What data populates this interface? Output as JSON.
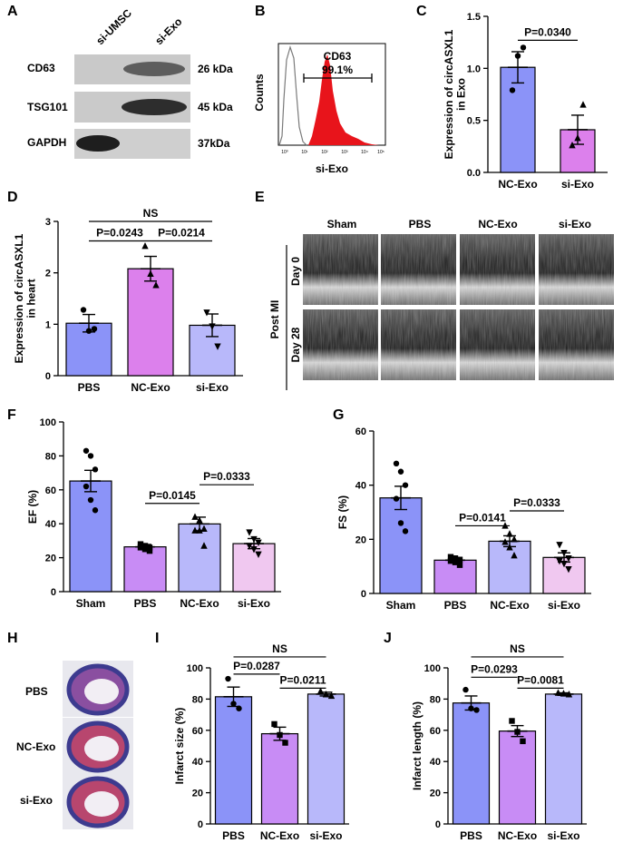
{
  "panels": {
    "A": "A",
    "B": "B",
    "C": "C",
    "D": "D",
    "E": "E",
    "F": "F",
    "G": "G",
    "H": "H",
    "I": "I",
    "J": "J"
  },
  "western_blot": {
    "lanes": [
      "si-UMSC",
      "si-Exo"
    ],
    "rows": [
      {
        "protein": "CD63",
        "size": "26 kDa"
      },
      {
        "protein": "TSG101",
        "size": "45 kDa"
      },
      {
        "protein": "GAPDH",
        "size": "37kDa"
      }
    ]
  },
  "flow_cytometry": {
    "ylabel": "Counts",
    "xlabel": "si-Exo",
    "marker": "CD63",
    "percent": "99.1%",
    "xtick_labels": [
      "10⁰",
      "10¹",
      "10²",
      "10³",
      "10⁴",
      "10⁵"
    ],
    "colors": {
      "fill": "#e8141b",
      "control": "#7a7a7a"
    }
  },
  "echo": {
    "groups": [
      "Sham",
      "PBS",
      "NC-Exo",
      "si-Exo"
    ],
    "times": [
      "Day 0",
      "Day 28"
    ],
    "side_label": "Post MI"
  },
  "histology": {
    "rows": [
      "PBS",
      "NC-Exo",
      "si-Exo"
    ]
  },
  "colors": {
    "blue": "#8b93f8",
    "violet": "#c88cf5",
    "magenta": "#dc80ec",
    "lavender": "#b8b8fa",
    "pink": "#f0c8f0"
  },
  "chart_data": [
    {
      "id": "C",
      "type": "bar",
      "title": "",
      "ylabel": "Expression of circASXL1 in Exo",
      "xlabel": "",
      "categories": [
        "NC-Exo",
        "si-Exo"
      ],
      "values": [
        1.01,
        0.41
      ],
      "errors": [
        0.15,
        0.14
      ],
      "points": [
        [
          0.79,
          1.12,
          1.2
        ],
        [
          0.26,
          0.33,
          0.65
        ]
      ],
      "markers": [
        "circle",
        "triangle"
      ],
      "ylim": [
        0,
        1.5
      ],
      "yticks": [
        0.0,
        0.5,
        1.0,
        1.5
      ],
      "ytick_labels": [
        "0.0",
        "0.5",
        "1.0",
        "1.5"
      ],
      "brackets": [
        {
          "from": 0,
          "to": 1,
          "label": "P=0.0340",
          "level": 1.27
        }
      ]
    },
    {
      "id": "D",
      "type": "bar",
      "title": "",
      "ylabel": "Expression of circASXL1 in heart",
      "xlabel": "",
      "categories": [
        "PBS",
        "NC-Exo",
        "si-Exo"
      ],
      "values": [
        1.02,
        2.08,
        0.98
      ],
      "errors": [
        0.17,
        0.24,
        0.22
      ],
      "points": [
        [
          1.28,
          0.87,
          0.91
        ],
        [
          2.52,
          1.98,
          1.76
        ],
        [
          1.23,
          0.96,
          0.57
        ]
      ],
      "markers": [
        "circle",
        "triangle",
        "invtriangle"
      ],
      "ylim": [
        0,
        3
      ],
      "yticks": [
        0,
        1,
        2,
        3
      ],
      "ytick_labels": [
        "0",
        "1",
        "2",
        "3"
      ],
      "brackets": [
        {
          "from": 0,
          "to": 1,
          "label": "P=0.0243",
          "level": 2.62
        },
        {
          "from": 1,
          "to": 2,
          "label": "P=0.0214",
          "level": 2.62
        },
        {
          "from": 0,
          "to": 2,
          "label": "NS",
          "level": 3.0
        }
      ]
    },
    {
      "id": "F",
      "type": "bar",
      "title": "",
      "ylabel": "EF (%)",
      "xlabel": "",
      "categories": [
        "Sham",
        "PBS",
        "NC-Exo",
        "si-Exo"
      ],
      "values": [
        65.2,
        26.4,
        39.9,
        28.3
      ],
      "errors": [
        6.3,
        1.4,
        4.0,
        3.0
      ],
      "points": [
        [
          83,
          80,
          72,
          62,
          54,
          48
        ],
        [
          28,
          27,
          26,
          26,
          25,
          24
        ],
        [
          44,
          42,
          37,
          36,
          36,
          27
        ],
        [
          35,
          31,
          29,
          27,
          25,
          22
        ]
      ],
      "markers": [
        "circle",
        "square",
        "triangle",
        "invtriangle"
      ],
      "ylim": [
        0,
        100
      ],
      "yticks": [
        0,
        20,
        40,
        60,
        80,
        100
      ],
      "ytick_labels": [
        "0",
        "20",
        "40",
        "60",
        "80",
        "100"
      ],
      "brackets": [
        {
          "from": 1,
          "to": 2,
          "label": "P=0.0145",
          "level": 52
        },
        {
          "from": 2,
          "to": 3,
          "label": "P=0.0333",
          "level": 63
        }
      ]
    },
    {
      "id": "G",
      "type": "bar",
      "title": "",
      "ylabel": "FS (%)",
      "xlabel": "",
      "categories": [
        "Sham",
        "PBS",
        "NC-Exo",
        "si-Exo"
      ],
      "values": [
        35.3,
        12.3,
        19.3,
        13.3
      ],
      "errors": [
        4.3,
        0.8,
        2.0,
        1.7
      ],
      "points": [
        [
          48,
          45,
          40,
          35,
          26,
          23
        ],
        [
          13.5,
          13,
          12.5,
          12,
          11.5,
          10.5
        ],
        [
          25,
          22,
          20,
          19,
          17,
          14
        ],
        [
          18,
          15,
          13,
          12,
          11,
          9
        ]
      ],
      "markers": [
        "circle",
        "square",
        "triangle",
        "invtriangle"
      ],
      "ylim": [
        0,
        60
      ],
      "yticks": [
        0,
        20,
        40,
        60
      ],
      "ytick_labels": [
        "0",
        "20",
        "40",
        "60"
      ],
      "brackets": [
        {
          "from": 1,
          "to": 2,
          "label": "P=0.0141",
          "level": 25
        },
        {
          "from": 2,
          "to": 3,
          "label": "P=0.0333",
          "level": 30.5
        }
      ]
    },
    {
      "id": "I",
      "type": "bar",
      "title": "",
      "ylabel": "Infarct size (%)",
      "xlabel": "",
      "categories": [
        "PBS",
        "NC-Exo",
        "si-Exo"
      ],
      "values": [
        81.5,
        57.8,
        83.2
      ],
      "errors": [
        6.2,
        4.2,
        1.2
      ],
      "points": [
        [
          93,
          77,
          74
        ],
        [
          64,
          57,
          52
        ],
        [
          85,
          83,
          82
        ]
      ],
      "markers": [
        "circle",
        "square",
        "triangle"
      ],
      "ylim": [
        0,
        100
      ],
      "yticks": [
        0,
        20,
        40,
        60,
        80,
        100
      ],
      "ytick_labels": [
        "0",
        "20",
        "40",
        "60",
        "80",
        "100"
      ],
      "brackets": [
        {
          "from": 0,
          "to": 1,
          "label": "P=0.0287",
          "level": 96
        },
        {
          "from": 1,
          "to": 2,
          "label": "P=0.0211",
          "level": 87
        },
        {
          "from": 0,
          "to": 2,
          "label": "NS",
          "level": 107
        }
      ]
    },
    {
      "id": "J",
      "type": "bar",
      "title": "",
      "ylabel": "Infarct length (%)",
      "xlabel": "",
      "categories": [
        "PBS",
        "NC-Exo",
        "si-Exo"
      ],
      "values": [
        77.5,
        59.5,
        83.2
      ],
      "errors": [
        4.5,
        3.5,
        0.8
      ],
      "points": [
        [
          86,
          74,
          73
        ],
        [
          66,
          59,
          53
        ],
        [
          84,
          83.5,
          83
        ]
      ],
      "markers": [
        "circle",
        "square",
        "triangle"
      ],
      "ylim": [
        0,
        100
      ],
      "yticks": [
        0,
        20,
        40,
        60,
        80,
        100
      ],
      "ytick_labels": [
        "0",
        "20",
        "40",
        "60",
        "80",
        "100"
      ],
      "brackets": [
        {
          "from": 0,
          "to": 1,
          "label": "P=0.0293",
          "level": 94
        },
        {
          "from": 1,
          "to": 2,
          "label": "P=0.0081",
          "level": 87
        },
        {
          "from": 0,
          "to": 2,
          "label": "NS",
          "level": 107
        }
      ]
    }
  ]
}
